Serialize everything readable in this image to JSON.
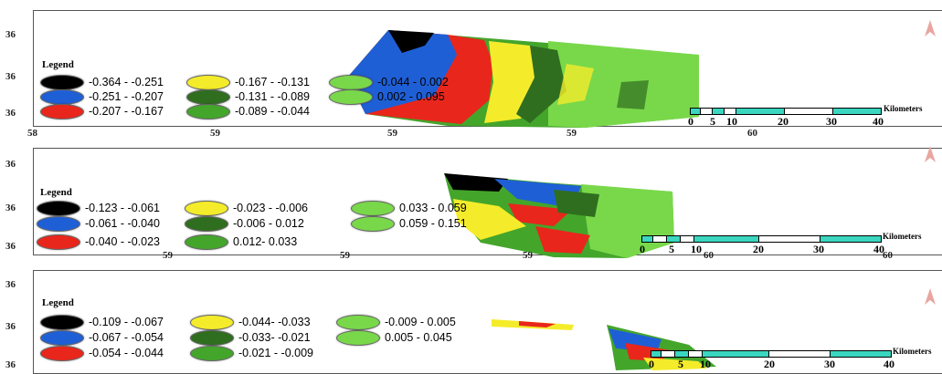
{
  "colors": {
    "black": "#000000",
    "blue": "#1f5fd6",
    "red": "#e8261c",
    "yellow": "#f4ec2a",
    "dark_green": "#2f6e1f",
    "mid_green": "#44a52b",
    "light_green": "#79d84a",
    "scale_fill": "#3ad6bf",
    "north_arrow": "#e8a6a0"
  },
  "panels": [
    {
      "legend_title": "Legend",
      "legend": [
        {
          "color": "black",
          "label": "-0.364 - -0.251"
        },
        {
          "color": "blue",
          "label": "-0.251 - -0.207"
        },
        {
          "color": "red",
          "label": "-0.207 - -0.167"
        },
        {
          "color": "yellow",
          "label": "-0.167 - -0.131"
        },
        {
          "color": "dark_green",
          "label": "-0.131 - -0.089"
        },
        {
          "color": "mid_green",
          "label": "-0.089 - -0.044"
        },
        {
          "color": "light_green",
          "label": "-0.044 - 0.002"
        },
        {
          "color": "light_green",
          "label": "0.002 - 0.095"
        }
      ],
      "lat_labels": [
        "36",
        "36",
        "36"
      ],
      "lon_labels": [
        "58",
        "59",
        "59",
        "59",
        "60"
      ],
      "scale_ticks": [
        "0",
        "5",
        "10",
        "20",
        "30",
        "40"
      ],
      "scale_unit": "Kilometers"
    },
    {
      "legend_title": "Legend",
      "legend": [
        {
          "color": "black",
          "label": "-0.123 - -0.061"
        },
        {
          "color": "blue",
          "label": "-0.061 - -0.040"
        },
        {
          "color": "red",
          "label": "-0.040 - -0.023"
        },
        {
          "color": "yellow",
          "label": "-0.023 - -0.006"
        },
        {
          "color": "dark_green",
          "label": "-0.006 - 0.012"
        },
        {
          "color": "mid_green",
          "label": "0.012- 0.033"
        },
        {
          "color": "light_green",
          "label": "0.033 - 0.059"
        },
        {
          "color": "light_green",
          "label": "0.059 - 0.151"
        }
      ],
      "lat_labels": [
        "36",
        "36",
        "36"
      ],
      "lon_labels": [
        "59",
        "59",
        "59",
        "60",
        "60"
      ],
      "scale_ticks": [
        "0",
        "5",
        "10",
        "20",
        "30",
        "40"
      ],
      "scale_unit": "Kilometers"
    },
    {
      "legend_title": "Legend",
      "legend": [
        {
          "color": "black",
          "label": "-0.109 - -0.067"
        },
        {
          "color": "blue",
          "label": "-0.067 - -0.054"
        },
        {
          "color": "red",
          "label": "-0.054 - -0.044"
        },
        {
          "color": "yellow",
          "label": "-0.044- -0.033"
        },
        {
          "color": "dark_green",
          "label": "-0.033- -0.021"
        },
        {
          "color": "mid_green",
          "label": "-0.021 - -0.009"
        },
        {
          "color": "light_green",
          "label": "-0.009 - 0.005"
        },
        {
          "color": "light_green",
          "label": "0.005 - 0.045"
        }
      ],
      "lat_labels": [
        "36",
        "36",
        "36"
      ],
      "lon_labels": [],
      "scale_ticks": [
        "0",
        "5",
        "10",
        "20",
        "30",
        "40"
      ],
      "scale_unit": "Kilometers"
    }
  ]
}
